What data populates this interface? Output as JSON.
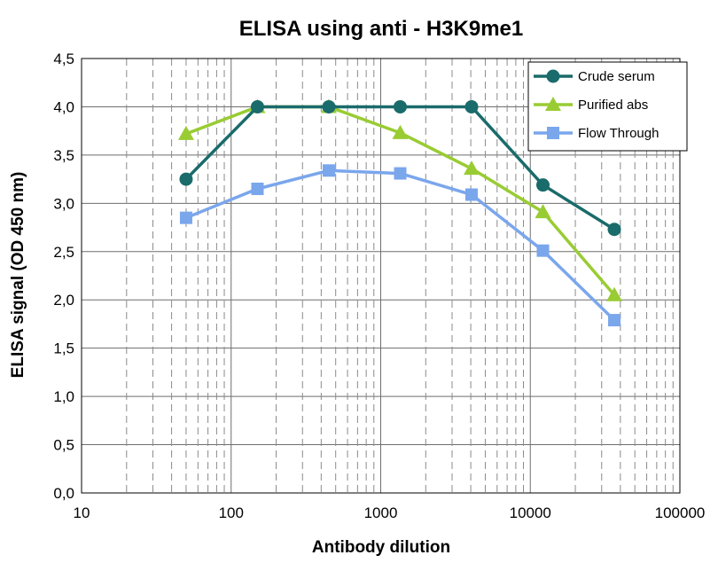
{
  "chart_data": {
    "type": "line",
    "title": "ELISA using  anti - H3K9me1",
    "xlabel": "Antibody dilution",
    "ylabel": "ELISA signal (OD 450 nm)",
    "xscale": "log",
    "xlim": [
      10,
      100000
    ],
    "ylim": [
      0,
      4.5
    ],
    "x_tick_labels": [
      "10",
      "100",
      "1000",
      "10000",
      "100000"
    ],
    "y_tick_labels": [
      "0,0",
      "0,5",
      "1,0",
      "1,5",
      "2,0",
      "2,5",
      "3,0",
      "3,5",
      "4,0",
      "4,5"
    ],
    "grid": true,
    "legend_position": "top-right",
    "x": [
      50,
      150,
      450,
      1350,
      4050,
      12150,
      36450
    ],
    "series": [
      {
        "name": "Crude serum",
        "color": "#1a6b6b",
        "marker": "circle",
        "values": [
          3.25,
          4.0,
          4.0,
          4.0,
          4.0,
          3.19,
          2.73
        ]
      },
      {
        "name": "Purified abs",
        "color": "#99cc33",
        "marker": "triangle",
        "values": [
          3.72,
          4.0,
          4.0,
          3.73,
          3.36,
          2.91,
          2.05
        ]
      },
      {
        "name": "Flow Through",
        "color": "#7aa6ec",
        "marker": "square",
        "values": [
          2.85,
          3.15,
          3.34,
          3.31,
          3.09,
          2.51,
          1.79
        ]
      }
    ]
  }
}
